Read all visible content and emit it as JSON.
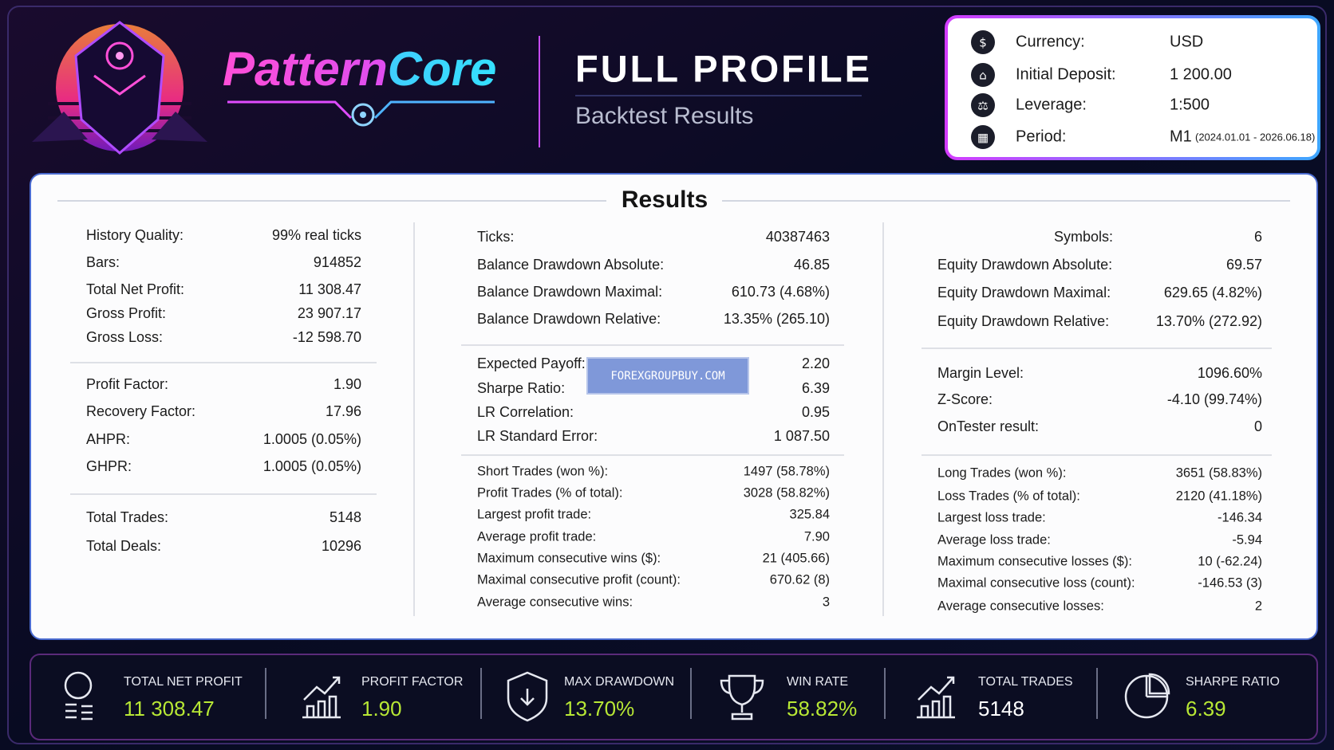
{
  "header": {
    "brand": [
      "Pattern",
      "Core"
    ],
    "title": "FULL PROFILE",
    "subtitle": "Backtest Results"
  },
  "info": [
    {
      "label": "Currency:",
      "value": "USD"
    },
    {
      "label": "Initial Deposit:",
      "value": "1 200.00"
    },
    {
      "label": "Leverage:",
      "value": "1:500"
    },
    {
      "label": "Period:",
      "value": "M1",
      "detail": "(2024.01.01 - 2026.06.18)"
    }
  ],
  "results": {
    "title": "Results",
    "columns": [
      [
        [
          {
            "label": "History Quality:",
            "value": "99% real ticks"
          },
          {
            "label": "Bars:",
            "value": "914852"
          },
          {
            "label": "Total Net Profit:",
            "value": "11 308.47",
            "color": "#23a033"
          },
          {
            "label": "Gross Profit:",
            "value": "23 907.17"
          },
          {
            "label": "Gross Loss:",
            "value": "-12 598.70"
          }
        ],
        [
          {
            "label": "Profit Factor:",
            "value": "1.90",
            "color": "#23a033"
          },
          {
            "label": "Recovery Factor:",
            "value": "17.96",
            "color": "#23a033"
          },
          {
            "label": "AHPR:",
            "value": "1.0005 (0.05%)"
          },
          {
            "label": "GHPR:",
            "value": "1.0005 (0.05%)"
          }
        ],
        [
          {
            "label": "Total Trades:",
            "value": "5148"
          },
          {
            "label": "Total Deals:",
            "value": "10296"
          }
        ]
      ],
      [
        [
          {
            "label": "Ticks:",
            "value": "40387463"
          },
          {
            "label": "Balance Drawdown Absolute:",
            "value": "46.85"
          },
          {
            "label": "Balance Drawdown Maximal:",
            "value": "610.73 (4.68%)"
          },
          {
            "label": "Balance Drawdown Relative:",
            "value": "13.35% (265.10)"
          }
        ],
        [
          {
            "label": "Expected Payoff:",
            "value": "2.20",
            "color": "#23a033"
          },
          {
            "label": "Sharpe Ratio:",
            "value": "6.39",
            "color": "#23a033"
          },
          {
            "label": "LR Correlation:",
            "value": "0.95"
          },
          {
            "label": "LR Standard Error:",
            "value": "1 087.50"
          }
        ],
        [
          {
            "label": "Short Trades (won %):",
            "value": "1497 (58.78%)"
          },
          {
            "label": "Profit Trades (% of total):",
            "value": "3028 (58.82%)",
            "color": "#23a033"
          },
          {
            "label": "Largest profit trade:",
            "value": "325.84"
          },
          {
            "label": "Average profit trade:",
            "value": "7.90",
            "color": "#23a033"
          },
          {
            "label": "Maximum consecutive wins ($):",
            "value": "21 (405.66)"
          },
          {
            "label": "Maximal consecutive profit (count):",
            "value": "670.62 (8)"
          },
          {
            "label": "Average consecutive wins:",
            "value": "3"
          }
        ]
      ],
      [
        [
          {
            "label": "Symbols:",
            "value": "6"
          },
          {
            "label": "Equity Drawdown Absolute:",
            "value": "69.57"
          },
          {
            "label": "Equity Drawdown Maximal:",
            "value": "629.65 (4.82%)"
          },
          {
            "label": "Equity Drawdown Relative:",
            "value": "13.70% (272.92)",
            "color": "#23a033"
          }
        ],
        [
          {
            "label": "Margin Level:",
            "value": "1096.60%"
          },
          {
            "label": "Z-Score:",
            "value": "-4.10 (99.74%)"
          },
          {
            "label": "OnTester result:",
            "value": "0"
          }
        ],
        [
          {
            "label": "Long Trades (won %):",
            "value": "3651 (58.83%)"
          },
          {
            "label": "Loss Trades (% of total):",
            "value": "2120 (41.18%)"
          },
          {
            "label": "Largest loss trade:",
            "value": "-146.34"
          },
          {
            "label": "Average loss trade:",
            "value": "-5.94"
          },
          {
            "label": "Maximum consecutive losses ($):",
            "value": "10 (-62.24)"
          },
          {
            "label": "Maximal consecutive loss (count):",
            "value": "-146.53 (3)"
          },
          {
            "label": "Average consecutive losses:",
            "value": "2"
          }
        ]
      ]
    ]
  },
  "watermark": "FOREXGROUPBUY.COM",
  "stats": [
    {
      "label": "TOTAL NET PROFIT",
      "value": "11 308.47",
      "color": "#b8e835"
    },
    {
      "label": "PROFIT FACTOR",
      "value": "1.90",
      "color": "#b8e835"
    },
    {
      "label": "MAX DRAWDOWN",
      "value": "13.70%",
      "color": "#b8e835"
    },
    {
      "label": "WIN RATE",
      "value": "58.82%",
      "color": "#b8e835"
    },
    {
      "label": "TOTAL TRADES",
      "value": "5148",
      "color": "#ffffff"
    },
    {
      "label": "SHARPE RATIO",
      "value": "6.39",
      "color": "#b8e835"
    }
  ]
}
